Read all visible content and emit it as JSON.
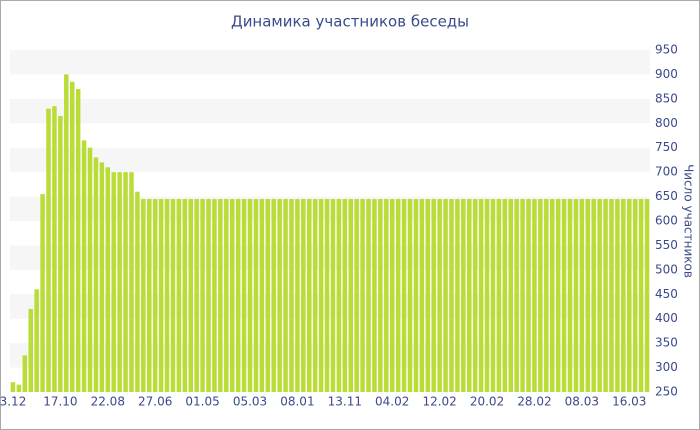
{
  "chart_data": {
    "type": "bar",
    "title": "Динамика участников беседы",
    "y_label": "Число участников",
    "categories": [
      "3.12",
      null,
      null,
      null,
      null,
      null,
      null,
      null,
      "17.10",
      null,
      null,
      null,
      null,
      null,
      null,
      null,
      "22.08",
      null,
      null,
      null,
      null,
      null,
      null,
      null,
      "27.06",
      null,
      null,
      null,
      null,
      null,
      null,
      null,
      "01.05",
      null,
      null,
      null,
      null,
      null,
      null,
      null,
      "05.03",
      null,
      null,
      null,
      null,
      null,
      null,
      null,
      "08.01",
      null,
      null,
      null,
      null,
      null,
      null,
      null,
      "13.11",
      null,
      null,
      null,
      null,
      null,
      null,
      null,
      "04.02",
      null,
      null,
      null,
      null,
      null,
      null,
      null,
      "12.02",
      null,
      null,
      null,
      null,
      null,
      null,
      null,
      "20.02",
      null,
      null,
      null,
      null,
      null,
      null,
      null,
      "28.02",
      null,
      null,
      null,
      null,
      null,
      null,
      null,
      "08.03",
      null,
      null,
      null,
      null,
      null,
      null,
      null,
      "16.03",
      null,
      null,
      null
    ],
    "values": [
      270,
      265,
      325,
      420,
      460,
      655,
      830,
      835,
      815,
      900,
      885,
      870,
      765,
      750,
      730,
      720,
      710,
      700,
      700,
      700,
      700,
      660,
      645,
      645,
      645,
      645,
      645,
      645,
      645,
      645,
      645,
      645,
      645,
      645,
      645,
      645,
      645,
      645,
      645,
      645,
      645,
      645,
      645,
      645,
      645,
      645,
      645,
      645,
      645,
      645,
      645,
      645,
      645,
      645,
      645,
      645,
      645,
      645,
      645,
      645,
      645,
      645,
      645,
      645,
      645,
      645,
      645,
      645,
      645,
      645,
      645,
      645,
      645,
      645,
      645,
      645,
      645,
      645,
      645,
      645,
      645,
      645,
      645,
      645,
      645,
      645,
      645,
      645,
      645,
      645,
      645,
      645,
      645,
      645,
      645,
      645,
      645,
      645,
      645,
      645,
      645,
      645,
      645,
      645,
      645,
      645,
      645,
      645
    ],
    "color": "#b9dc37",
    "ylim": [
      250,
      950
    ],
    "yticks": [
      250,
      300,
      350,
      400,
      450,
      500,
      550,
      600,
      650,
      700,
      750,
      800,
      850,
      900,
      950
    ],
    "grid": true
  }
}
